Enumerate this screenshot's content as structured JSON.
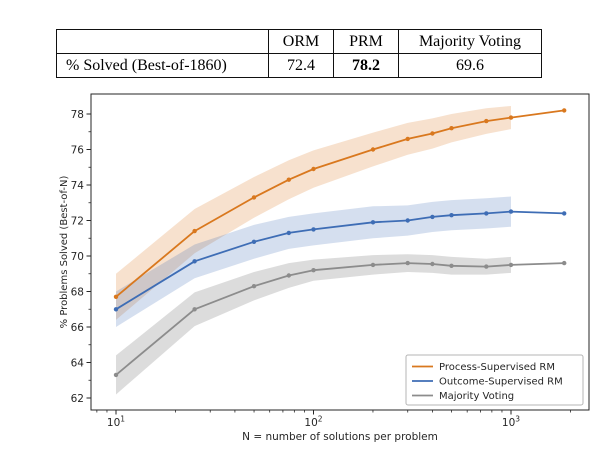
{
  "table": {
    "corner_label": "",
    "columns": [
      "ORM",
      "PRM",
      "Majority Voting"
    ],
    "row_label": "% Solved (Best-of-1860)",
    "values": {
      "orm": "72.4",
      "prm": "78.2",
      "majority_voting": "69.6"
    },
    "bold_cell": "prm"
  },
  "chart_data": {
    "type": "line",
    "xscale": "log",
    "x": [
      10,
      25,
      50,
      75,
      100,
      200,
      300,
      400,
      500,
      750,
      1000,
      1860
    ],
    "series": [
      {
        "name": "Process-Supervised RM",
        "color": "#d9781e",
        "values": [
          67.7,
          71.4,
          73.3,
          74.3,
          74.9,
          76.0,
          76.6,
          76.9,
          77.2,
          77.6,
          77.8,
          78.2
        ],
        "band_halfwidth": [
          1.3,
          1.25,
          1.15,
          1.1,
          1.05,
          0.95,
          0.9,
          0.85,
          0.8,
          0.72,
          0.65
        ],
        "band_opacity": 0.22
      },
      {
        "name": "Outcome-Supervised RM",
        "color": "#3e6db5",
        "values": [
          67.0,
          69.7,
          70.8,
          71.3,
          71.5,
          71.9,
          72.0,
          72.2,
          72.3,
          72.4,
          72.5,
          72.4
        ],
        "band_halfwidth": [
          1.0,
          0.95,
          0.95,
          0.9,
          0.9,
          0.9,
          0.85,
          0.85,
          0.85,
          0.85,
          0.85
        ],
        "band_opacity": 0.22
      },
      {
        "name": "Majority Voting",
        "color": "#8c8c8c",
        "values": [
          63.3,
          67.0,
          68.3,
          68.9,
          69.2,
          69.5,
          69.6,
          69.55,
          69.45,
          69.4,
          69.5,
          69.6
        ],
        "band_halfwidth": [
          1.1,
          0.95,
          0.8,
          0.7,
          0.6,
          0.55,
          0.5,
          0.5,
          0.5,
          0.45,
          0.45
        ],
        "band_opacity": 0.3
      }
    ],
    "band_ends_at_x": 1000,
    "xlabel": "N = number of solutions per problem",
    "ylabel": "% Problems Solved (Best-of-N)",
    "xticks": [
      10,
      100,
      1000
    ],
    "xtick_labels": [
      "10¹",
      "10²",
      "10³"
    ],
    "yticks": [
      62,
      64,
      66,
      68,
      70,
      72,
      74,
      76,
      78
    ],
    "xlim_log10": [
      0.874,
      3.386
    ],
    "ylim": [
      61.3,
      79.1
    ],
    "grid": false,
    "legend_position": "lower right"
  }
}
